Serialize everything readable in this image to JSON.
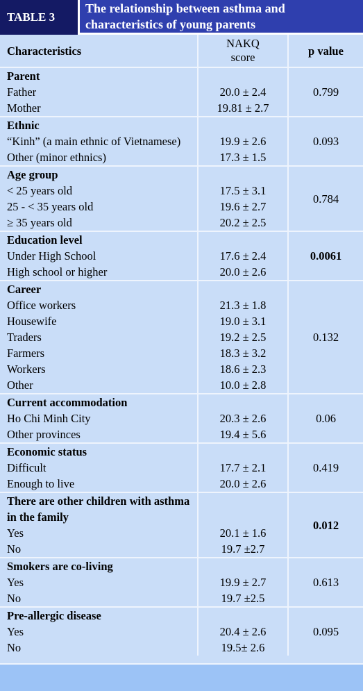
{
  "header": {
    "label": "TABLE 3",
    "title": "The relationship between asthma and characteristics of young parents"
  },
  "table": {
    "columns": [
      "Characteristics",
      "NAKQ score",
      "p value"
    ],
    "sections": [
      {
        "title": "Parent",
        "items": [
          "Father",
          "Mother"
        ],
        "scores": [
          "20.0 ± 2.4",
          "19.81 ± 2.7"
        ],
        "p_value": "0.799",
        "p_bold": false
      },
      {
        "title": "Ethnic",
        "items": [
          "“Kinh” (a main ethnic of Vietnamese)",
          "Other (minor ethnics)"
        ],
        "scores": [
          "19.9 ± 2.6",
          "17.3 ± 1.5"
        ],
        "p_value": "0.093",
        "p_bold": false
      },
      {
        "title": "Age group",
        "items": [
          "< 25 years old",
          "25 - < 35 years old",
          "≥ 35 years old"
        ],
        "scores": [
          "17.5 ± 3.1",
          "19.6 ± 2.7",
          "20.2 ± 2.5"
        ],
        "p_value": "0.784",
        "p_bold": false
      },
      {
        "title": "Education level",
        "items": [
          "Under High School",
          "High school or higher"
        ],
        "scores": [
          "17.6 ± 2.4",
          "20.0 ± 2.6"
        ],
        "p_value": "0.0061",
        "p_bold": true
      },
      {
        "title": "Career",
        "items": [
          "Office workers",
          "Housewife",
          "Traders",
          "Farmers",
          "Workers",
          "Other"
        ],
        "scores": [
          "21.3 ± 1.8",
          "19.0 ± 3.1",
          "19.2 ± 2.5",
          "18.3 ± 3.2",
          "18.6 ± 2.3",
          "10.0 ± 2.8"
        ],
        "p_value": "0.132",
        "p_bold": false
      },
      {
        "title": "Current accommodation",
        "items": [
          "Ho Chi Minh City",
          "Other provinces"
        ],
        "scores": [
          "20.3 ± 2.6",
          "19.4 ± 5.6"
        ],
        "p_value": "0.06",
        "p_bold": false
      },
      {
        "title": "Economic status",
        "items": [
          "Difficult",
          "Enough to live"
        ],
        "scores": [
          "17.7 ± 2.1",
          "20.0 ± 2.6"
        ],
        "p_value": "0.419",
        "p_bold": false
      },
      {
        "title": "There are other children with asthma in the family",
        "items": [
          "Yes",
          "No"
        ],
        "scores": [
          "20.1 ± 1.6",
          "19.7  ±2.7"
        ],
        "p_value": "0.012",
        "p_bold": true
      },
      {
        "title": "Smokers are co-living",
        "items": [
          "Yes",
          "No"
        ],
        "scores": [
          "19.9 ± 2.7",
          "19.7  ±2.5"
        ],
        "p_value": "0.613",
        "p_bold": false
      },
      {
        "title": "Pre-allergic disease",
        "items": [
          "Yes",
          "No"
        ],
        "scores": [
          "20.4 ± 2.6",
          "19.5± 2.6"
        ],
        "p_value": "0.095",
        "p_bold": false
      }
    ]
  }
}
